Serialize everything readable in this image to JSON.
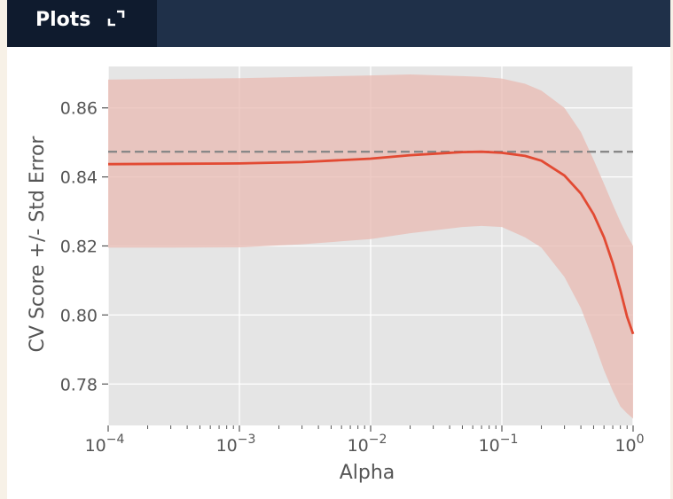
{
  "panel": {
    "title": "Plots",
    "expand_icon": "expand-icon"
  },
  "colors": {
    "header_bg": "#1f3049",
    "tab_bg": "#0f1b2e",
    "plot_bg": "#e5e5e5",
    "line": "#e24a33",
    "band": "#e8bab1",
    "best_line": "#888888"
  },
  "chart_data": {
    "type": "line",
    "title": "",
    "xlabel": "Alpha",
    "ylabel": "CV Score +/- Std Error",
    "xscale": "log",
    "xlim": [
      0.0001,
      1
    ],
    "ylim": [
      0.768,
      0.872
    ],
    "grid": true,
    "x_ticks": [
      {
        "value": 0.0001,
        "base": "10",
        "exp": "−4"
      },
      {
        "value": 0.001,
        "base": "10",
        "exp": "−3"
      },
      {
        "value": 0.01,
        "base": "10",
        "exp": "−2"
      },
      {
        "value": 0.1,
        "base": "10",
        "exp": "−1"
      },
      {
        "value": 1,
        "base": "10",
        "exp": "0"
      }
    ],
    "y_ticks": [
      "0.86",
      "0.84",
      "0.82",
      "0.80",
      "0.78"
    ],
    "best_score": 0.8473,
    "series": [
      {
        "x": [
          0.0001,
          0.0003,
          0.001,
          0.003,
          0.01,
          0.02,
          0.05,
          0.07,
          0.1,
          0.15,
          0.2,
          0.3,
          0.4,
          0.5,
          0.6,
          0.7,
          0.8,
          0.9,
          1.0
        ],
        "mean": [
          0.8437,
          0.8438,
          0.8439,
          0.8443,
          0.8453,
          0.8463,
          0.8472,
          0.8473,
          0.847,
          0.8461,
          0.8447,
          0.8404,
          0.8352,
          0.8292,
          0.8225,
          0.815,
          0.8071,
          0.7995,
          0.7945
        ],
        "lower": [
          0.8195,
          0.8195,
          0.8196,
          0.8205,
          0.822,
          0.8237,
          0.8255,
          0.8258,
          0.8255,
          0.8225,
          0.8195,
          0.811,
          0.802,
          0.7925,
          0.784,
          0.778,
          0.7735,
          0.7715,
          0.77
        ],
        "upper": [
          0.8682,
          0.8684,
          0.8686,
          0.869,
          0.8694,
          0.8697,
          0.8692,
          0.869,
          0.8685,
          0.867,
          0.865,
          0.86,
          0.853,
          0.845,
          0.838,
          0.832,
          0.827,
          0.823,
          0.82
        ]
      }
    ]
  }
}
